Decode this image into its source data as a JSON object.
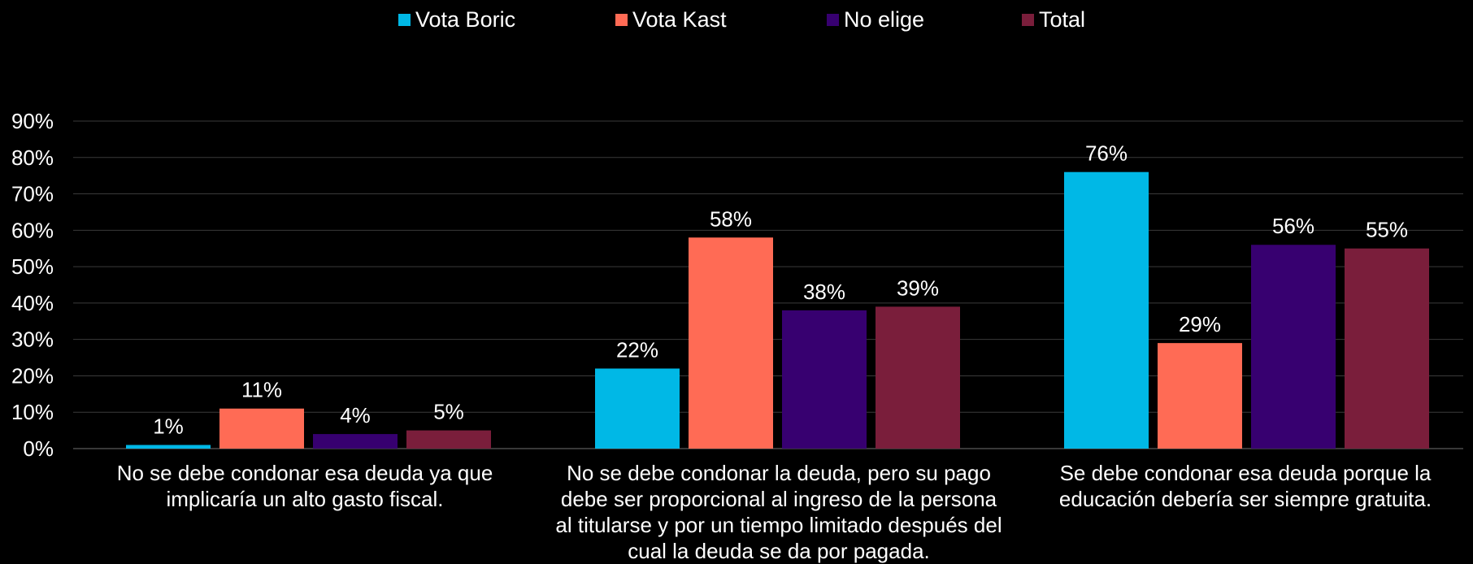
{
  "chart_data": {
    "type": "bar",
    "categories": [
      "No se debe condonar esa deuda ya que implicaría un alto gasto fiscal.",
      "No se debe condonar la deuda, pero su pago debe ser proporcional al ingreso de la persona al titularse y por un tiempo limitado después del cual la deuda se da por pagada.",
      "Se debe condonar esa deuda porque la educación debería ser siempre gratuita."
    ],
    "series": [
      {
        "name": "Vota Boric",
        "color": "#00B8E6",
        "values": [
          1,
          22,
          76
        ],
        "labels": [
          "1%",
          "22%",
          "76%"
        ]
      },
      {
        "name": "Vota Kast",
        "color": "#FF6B55",
        "values": [
          11,
          58,
          29
        ],
        "labels": [
          "11%",
          "58%",
          "29%"
        ]
      },
      {
        "name": "No elige",
        "color": "#370070",
        "values": [
          4,
          38,
          56
        ],
        "labels": [
          "4%",
          "38%",
          "56%"
        ]
      },
      {
        "name": "Total",
        "color": "#7A1E3B",
        "values": [
          5,
          39,
          55
        ],
        "labels": [
          "5%",
          "39%",
          "55%"
        ]
      }
    ],
    "ylim": [
      0,
      90
    ],
    "yticks": [
      "0%",
      "10%",
      "20%",
      "30%",
      "40%",
      "50%",
      "60%",
      "70%",
      "80%",
      "90%"
    ],
    "grid": true,
    "legend": "top-center",
    "title": "",
    "xlabel": "",
    "ylabel": ""
  }
}
